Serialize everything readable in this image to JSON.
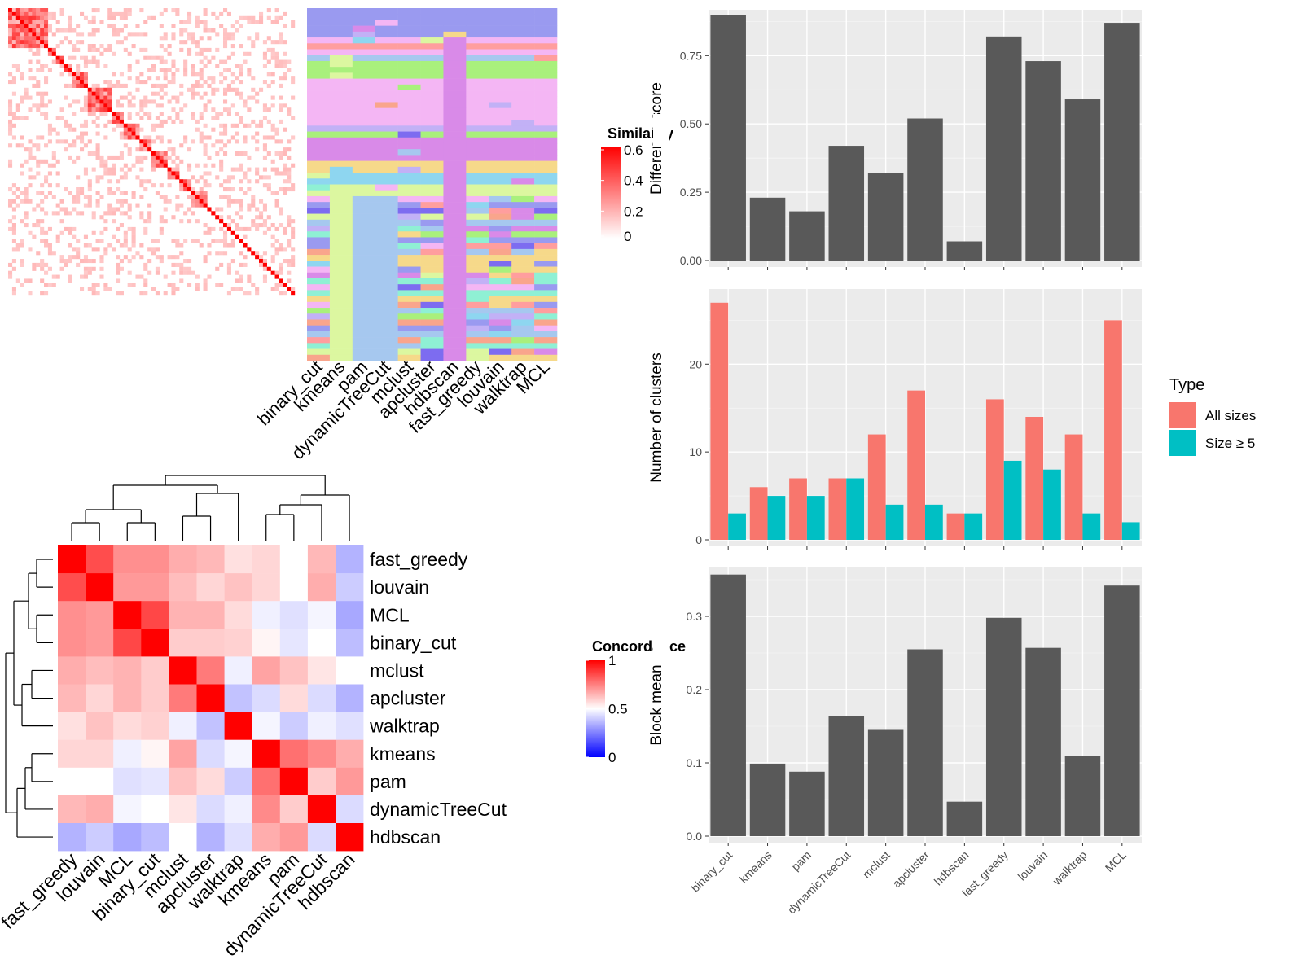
{
  "methods_order": [
    "binary_cut",
    "kmeans",
    "pam",
    "dynamicTreeCut",
    "mclust",
    "apcluster",
    "hdbscan",
    "fast_greedy",
    "louvain",
    "walktrap",
    "MCL"
  ],
  "chart_data": [
    {
      "type": "heatmap",
      "name": "similarity-heatmap",
      "legend_title": "Similarity",
      "legend_ticks": [
        "0.6",
        "0.4",
        "0.2",
        "0"
      ],
      "legend_range": [
        0,
        0.6
      ],
      "column_labels": [
        "binary_cut",
        "kmeans",
        "pam",
        "dynamicTreeCut",
        "mclust",
        "apcluster",
        "hdbscan",
        "fast_greedy",
        "louvain",
        "walktrap",
        "MCL"
      ],
      "colors": {
        "low": "#ffffff",
        "high": "#ff0000"
      }
    },
    {
      "type": "heatmap",
      "name": "concordance-heatmap",
      "legend_title": "Concordance",
      "legend_ticks": [
        "1",
        "0.5",
        "0"
      ],
      "legend_range": [
        0,
        1
      ],
      "row_labels": [
        "fast_greedy",
        "louvain",
        "MCL",
        "binary_cut",
        "mclust",
        "apcluster",
        "walktrap",
        "kmeans",
        "pam",
        "dynamicTreeCut",
        "hdbscan"
      ],
      "col_labels": [
        "fast_greedy",
        "louvain",
        "MCL",
        "binary_cut",
        "mclust",
        "apcluster",
        "walktrap",
        "kmeans",
        "pam",
        "dynamicTreeCut",
        "hdbscan"
      ],
      "matrix": [
        [
          1.0,
          0.85,
          0.72,
          0.72,
          0.66,
          0.64,
          0.56,
          0.58,
          0.5,
          0.64,
          0.35
        ],
        [
          0.85,
          1.0,
          0.7,
          0.7,
          0.63,
          0.58,
          0.62,
          0.58,
          0.5,
          0.66,
          0.4
        ],
        [
          0.72,
          0.7,
          1.0,
          0.86,
          0.65,
          0.65,
          0.57,
          0.47,
          0.44,
          0.48,
          0.33
        ],
        [
          0.72,
          0.7,
          0.86,
          1.0,
          0.6,
          0.6,
          0.59,
          0.52,
          0.45,
          0.5,
          0.37
        ],
        [
          0.66,
          0.63,
          0.65,
          0.6,
          1.0,
          0.76,
          0.47,
          0.68,
          0.62,
          0.55,
          0.5
        ],
        [
          0.64,
          0.58,
          0.65,
          0.6,
          0.76,
          1.0,
          0.38,
          0.43,
          0.57,
          0.43,
          0.35
        ],
        [
          0.56,
          0.62,
          0.57,
          0.59,
          0.47,
          0.38,
          1.0,
          0.48,
          0.4,
          0.47,
          0.44
        ],
        [
          0.58,
          0.58,
          0.47,
          0.52,
          0.68,
          0.43,
          0.48,
          1.0,
          0.78,
          0.73,
          0.66
        ],
        [
          0.5,
          0.5,
          0.44,
          0.45,
          0.62,
          0.57,
          0.4,
          0.78,
          1.0,
          0.6,
          0.7
        ],
        [
          0.64,
          0.66,
          0.48,
          0.5,
          0.55,
          0.43,
          0.47,
          0.73,
          0.6,
          1.0,
          0.43
        ],
        [
          0.35,
          0.4,
          0.33,
          0.37,
          0.5,
          0.35,
          0.44,
          0.66,
          0.7,
          0.43,
          1.0
        ]
      ]
    },
    {
      "type": "bar",
      "name": "difference-score",
      "categories": [
        "binary_cut",
        "kmeans",
        "pam",
        "dynamicTreeCut",
        "mclust",
        "apcluster",
        "hdbscan",
        "fast_greedy",
        "louvain",
        "walktrap",
        "MCL"
      ],
      "values": [
        0.9,
        0.23,
        0.18,
        0.42,
        0.32,
        0.52,
        0.07,
        0.82,
        0.73,
        0.59,
        0.87
      ],
      "ylabel": "Difference score",
      "ylim": [
        0,
        0.9
      ],
      "yticks": [
        0.0,
        0.25,
        0.5,
        0.75
      ],
      "ytick_labels": [
        "0.00",
        "0.25",
        "0.50",
        "0.75"
      ],
      "color": "#595959"
    },
    {
      "type": "bar",
      "name": "number-of-clusters",
      "categories": [
        "binary_cut",
        "kmeans",
        "pam",
        "dynamicTreeCut",
        "mclust",
        "apcluster",
        "hdbscan",
        "fast_greedy",
        "louvain",
        "walktrap",
        "MCL"
      ],
      "series": [
        {
          "name": "All sizes",
          "values": [
            27,
            6,
            7,
            7,
            12,
            17,
            3,
            16,
            14,
            12,
            25
          ],
          "color": "#f8766d"
        },
        {
          "name": "Size ≥ 5",
          "values": [
            3,
            5,
            5,
            7,
            4,
            4,
            3,
            9,
            8,
            3,
            2
          ],
          "color": "#00bfc4"
        }
      ],
      "ylabel": "Number of clusters",
      "ylim": [
        0,
        28
      ],
      "yticks": [
        0,
        10,
        20
      ],
      "ytick_labels": [
        "0",
        "10",
        "20"
      ],
      "legend_title": "Type",
      "legend_position": "right"
    },
    {
      "type": "bar",
      "name": "block-mean",
      "categories": [
        "binary_cut",
        "kmeans",
        "pam",
        "dynamicTreeCut",
        "mclust",
        "apcluster",
        "hdbscan",
        "fast_greedy",
        "louvain",
        "walktrap",
        "MCL"
      ],
      "values": [
        0.357,
        0.099,
        0.088,
        0.164,
        0.145,
        0.255,
        0.047,
        0.298,
        0.257,
        0.11,
        0.342
      ],
      "ylabel": "Block mean",
      "ylim": [
        0,
        0.36
      ],
      "yticks": [
        0.0,
        0.1,
        0.2,
        0.3
      ],
      "ytick_labels": [
        "0.0",
        "0.1",
        "0.2",
        "0.3"
      ],
      "color": "#595959"
    }
  ]
}
